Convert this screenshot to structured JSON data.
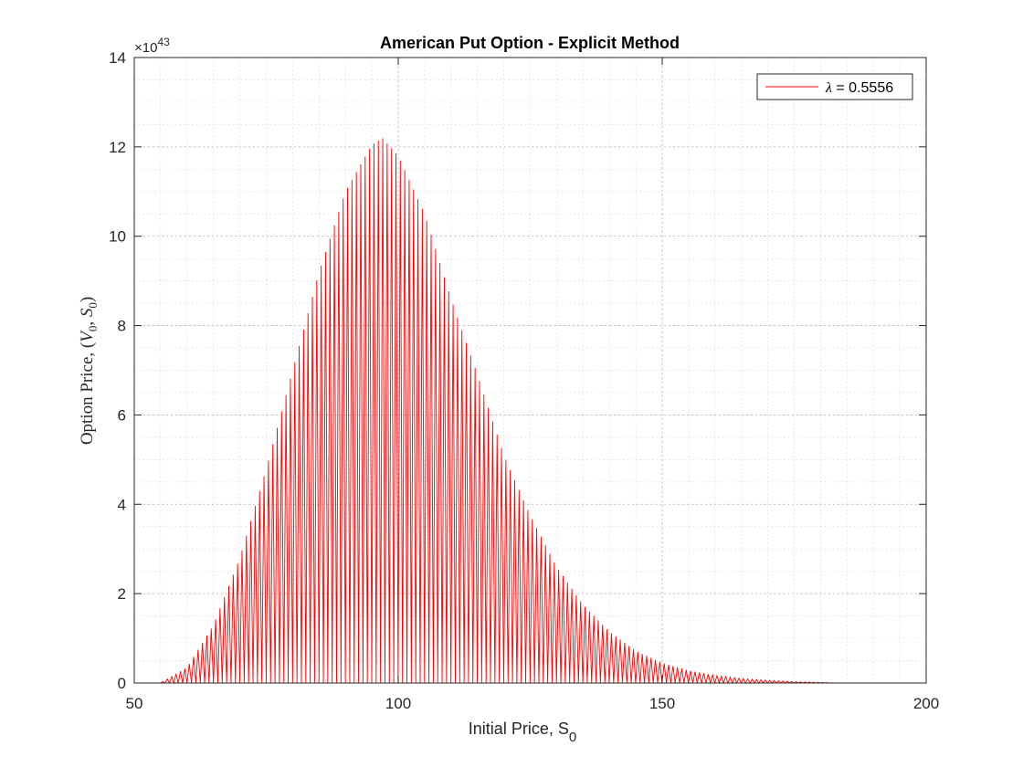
{
  "chart_data": {
    "type": "line",
    "title": "American Put Option - Explicit Method",
    "xlabel_text": "Initial Price, S",
    "xlabel_sub": "0",
    "ylabel_text": "Option Price, (",
    "ylabel_v": "V",
    "ylabel_v_sub": "0",
    "ylabel_sep": ", ",
    "ylabel_s": "S",
    "ylabel_s_sub": "0",
    "ylabel_close": ")",
    "exponent_base": "×10",
    "exponent_power": "43",
    "xlim": [
      50,
      200
    ],
    "ylim": [
      0,
      14
    ],
    "x_ticks": [
      50,
      100,
      150,
      200
    ],
    "y_ticks": [
      0,
      2,
      4,
      6,
      8,
      10,
      12,
      14
    ],
    "x_minor_step": 5,
    "y_minor_step": 0.5,
    "grid": true,
    "legend_position": "top-right",
    "series": [
      {
        "name": "λ = 0.5556",
        "legend_symbol": "λ",
        "legend_value": " = 0.5556",
        "color": "#ff0000",
        "pattern": "alternating",
        "x_start": 55,
        "x_end": 182.5,
        "x_step": 0.833,
        "envelope": {
          "x": [
            55,
            60,
            65,
            70,
            75,
            80,
            85,
            90,
            95,
            97,
            100,
            105,
            110,
            115,
            120,
            125,
            130,
            135,
            140,
            145,
            150,
            155,
            160,
            165,
            170,
            175,
            180,
            182.5
          ],
          "y": [
            0,
            0.35,
            1.3,
            2.8,
            4.8,
            7.0,
            9.2,
            11.0,
            12.05,
            12.2,
            11.8,
            10.5,
            8.6,
            6.9,
            5.1,
            3.75,
            2.6,
            1.75,
            1.15,
            0.72,
            0.45,
            0.28,
            0.17,
            0.1,
            0.06,
            0.03,
            0.015,
            0.0
          ]
        }
      }
    ]
  }
}
